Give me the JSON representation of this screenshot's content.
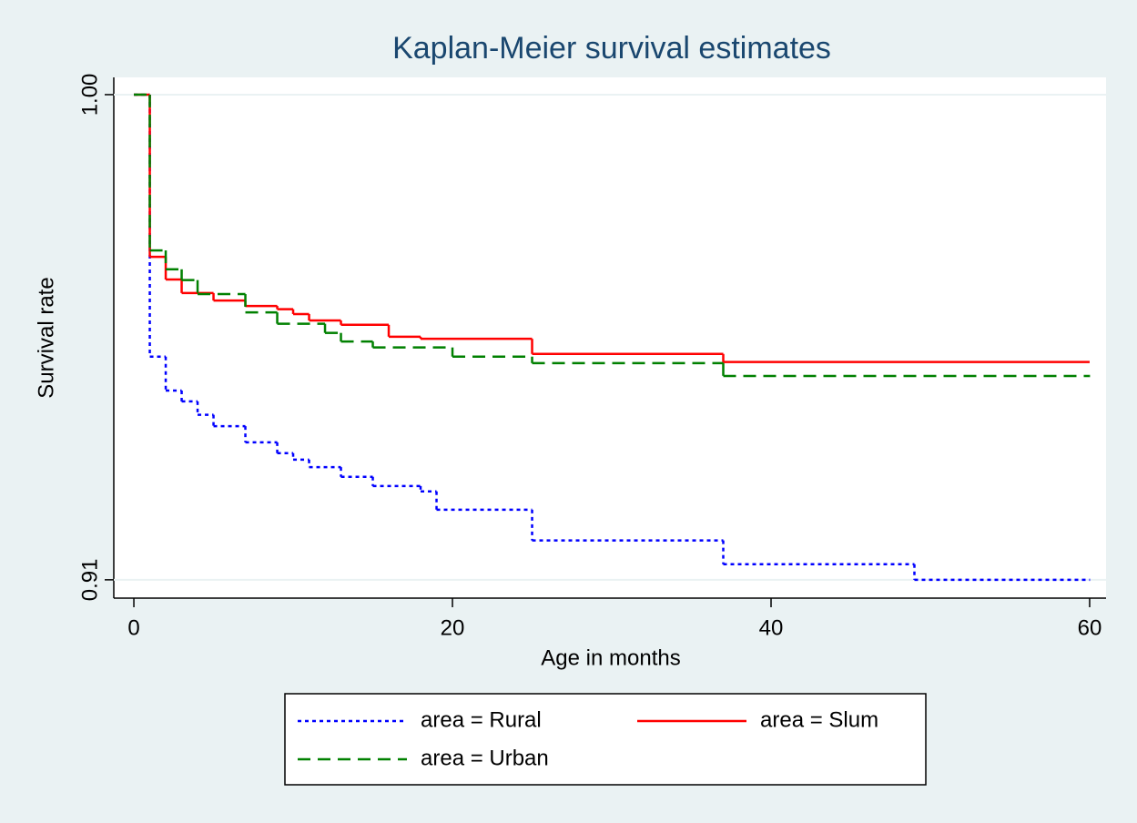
{
  "chart_data": {
    "type": "step",
    "title": "Kaplan-Meier survival estimates",
    "x_label": "Age in months",
    "y_label": "Survival rate",
    "xlim": [
      -1.26,
      61.03
    ],
    "ylim": [
      0.9066,
      1.0032
    ],
    "xticks": [
      0,
      20,
      40,
      60
    ],
    "yticks": [
      0.91,
      {
        "value": 1,
        "label": "1.00"
      }
    ],
    "grid": true,
    "legend_position": "bottom",
    "series": [
      {
        "name": "area = Rural",
        "color": "#0000ff",
        "dash": "dotted",
        "x": [
          0,
          1,
          2,
          3,
          4,
          5,
          7,
          9,
          10,
          11,
          13,
          15,
          18,
          19,
          25,
          37,
          49,
          60
        ],
        "values": [
          1,
          0.9514,
          0.9451,
          0.9431,
          0.9406,
          0.9385,
          0.9355,
          0.9335,
          0.9323,
          0.9309,
          0.9291,
          0.9274,
          0.9264,
          0.923,
          0.9173,
          0.9129,
          0.91,
          0.91
        ]
      },
      {
        "name": "area = Slum",
        "color": "#ff0000",
        "dash": "solid",
        "x": [
          0,
          1,
          2,
          3,
          5,
          7,
          9,
          10,
          11,
          13,
          16,
          18,
          25,
          37,
          60
        ],
        "values": [
          1,
          0.9699,
          0.9657,
          0.9632,
          0.9618,
          0.9608,
          0.9602,
          0.9593,
          0.9581,
          0.9573,
          0.9551,
          0.9547,
          0.9519,
          0.9504,
          0.9504
        ]
      },
      {
        "name": "area = Urban",
        "color": "#008000",
        "dash": "dashed",
        "x": [
          0,
          1,
          2,
          3,
          4,
          7,
          9,
          12,
          13,
          15,
          20,
          25,
          37,
          60
        ],
        "values": [
          1,
          0.9711,
          0.9676,
          0.9656,
          0.963,
          0.9596,
          0.9575,
          0.9558,
          0.9542,
          0.9531,
          0.9514,
          0.9502,
          0.9478,
          0.9478
        ]
      }
    ]
  }
}
